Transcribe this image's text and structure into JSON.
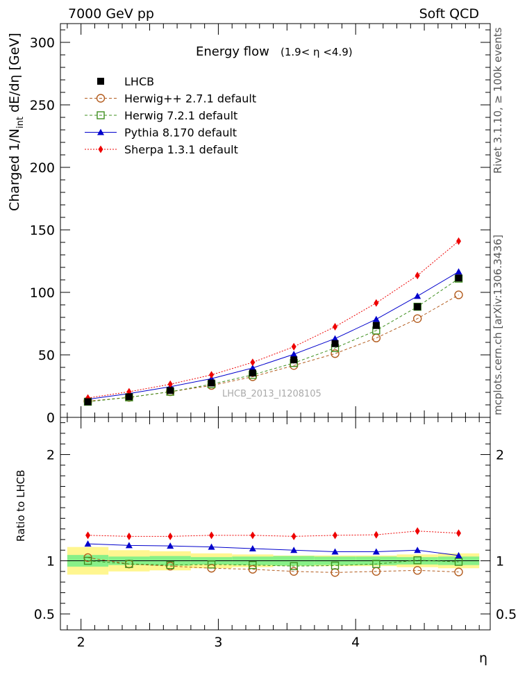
{
  "header": {
    "left": "7000 GeV pp",
    "right": "Soft QCD"
  },
  "side_labels": {
    "rivet": "Rivet 3.1.10, ≥ 100k events",
    "mcplots": "mcplots.cern.ch [arXiv:1306.3436]"
  },
  "watermark": "LHCB_2013_I1208105",
  "colors": {
    "lhcb": "#000000",
    "herwigpp": "#b35c1e",
    "herwig7": "#3f8f1f",
    "pythia": "#0000cc",
    "sherpa": "#ee0000",
    "band_inner": "#88f088",
    "band_outer": "#fff690"
  },
  "chart_data": [
    {
      "type": "line",
      "title": "Energy flow",
      "subtitle": "(1.9< η <4.9)",
      "ylabel_main": "Charged 1/N",
      "ylabel_sub": "int",
      "ylabel_tail": " dE/dη [GeV]",
      "xlabel": "η",
      "xlim": [
        1.85,
        4.98
      ],
      "ylim": [
        0,
        315
      ],
      "y_ticks": [
        0,
        50,
        100,
        150,
        200,
        250,
        300
      ],
      "y_tick_labels": [
        "0",
        "50",
        "100",
        "150",
        "200",
        "250",
        "300"
      ],
      "legend_position": "top-left",
      "x": [
        2.05,
        2.35,
        2.65,
        2.95,
        3.25,
        3.55,
        3.85,
        4.15,
        4.45,
        4.75
      ],
      "series": [
        {
          "name": "LHCB",
          "style": "data",
          "values": [
            12.5,
            16.5,
            21.5,
            27.5,
            35.5,
            46,
            59,
            73.5,
            88.5,
            111.5
          ]
        },
        {
          "name": "Herwig++ 2.7.1 default",
          "style": "herwigpp",
          "values": [
            13,
            16,
            20.5,
            25.5,
            32.5,
            41.5,
            51,
            63.5,
            79,
            98
          ]
        },
        {
          "name": "Herwig 7.2.1 default",
          "style": "herwig7",
          "values": [
            12.5,
            16,
            20.5,
            26.5,
            34,
            43.5,
            55.5,
            69.5,
            88.5,
            111
          ]
        },
        {
          "name": "Pythia 8.170 default",
          "style": "pythia",
          "values": [
            14.5,
            19,
            24.5,
            31,
            39.5,
            50.5,
            63,
            78.5,
            97,
            116.5
          ]
        },
        {
          "name": "Sherpa 1.3.1 default",
          "style": "sherpa",
          "values": [
            15.5,
            20.5,
            26.5,
            34,
            44,
            56.5,
            72.5,
            91.5,
            113.5,
            141
          ]
        }
      ]
    },
    {
      "type": "line",
      "ylabel": "Ratio to LHCB",
      "xlabel": "η",
      "xlim": [
        1.85,
        4.98
      ],
      "ylim": [
        0.35,
        2.35
      ],
      "y_ticks": [
        0.5,
        1,
        2
      ],
      "y_tick_labels": [
        "0.5",
        "1",
        "2"
      ],
      "x_ticks": [
        2,
        3,
        4
      ],
      "x_tick_labels": [
        "2",
        "3",
        "4"
      ],
      "x": [
        2.05,
        2.35,
        2.65,
        2.95,
        3.25,
        3.55,
        3.85,
        4.15,
        4.45,
        4.75
      ],
      "bin_edges": [
        1.9,
        2.2,
        2.5,
        2.8,
        3.1,
        3.4,
        3.7,
        4.0,
        4.3,
        4.6,
        4.9
      ],
      "band_inner": [
        0.055,
        0.04,
        0.045,
        0.035,
        0.04,
        0.045,
        0.04,
        0.04,
        0.035,
        0.04
      ],
      "band_outer": [
        0.13,
        0.1,
        0.09,
        0.07,
        0.06,
        0.05,
        0.05,
        0.05,
        0.06,
        0.07
      ],
      "series": [
        {
          "name": "Herwig++ 2.7.1 default",
          "style": "herwigpp",
          "values": [
            1.03,
            0.97,
            0.95,
            0.93,
            0.92,
            0.9,
            0.89,
            0.9,
            0.91,
            0.895
          ]
        },
        {
          "name": "Herwig 7.2.1 default",
          "style": "herwig7",
          "values": [
            1.0,
            0.97,
            0.96,
            0.965,
            0.96,
            0.95,
            0.955,
            0.97,
            1.005,
            0.99
          ]
        },
        {
          "name": "Pythia 8.170 default",
          "style": "pythia",
          "values": [
            1.16,
            1.145,
            1.14,
            1.13,
            1.115,
            1.1,
            1.085,
            1.085,
            1.1,
            1.05
          ]
        },
        {
          "name": "Sherpa 1.3.1 default",
          "style": "sherpa",
          "values": [
            1.24,
            1.23,
            1.23,
            1.24,
            1.24,
            1.23,
            1.24,
            1.245,
            1.28,
            1.26
          ]
        }
      ]
    }
  ]
}
